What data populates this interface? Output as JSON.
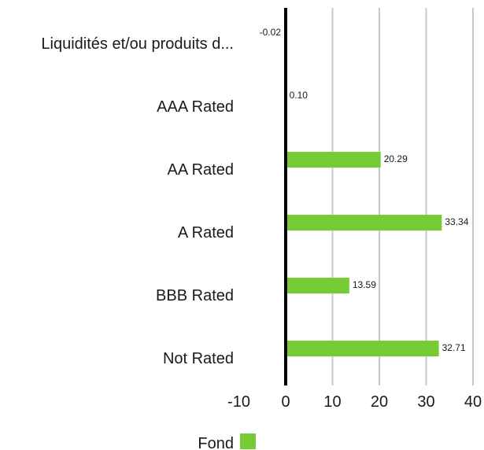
{
  "chart_data": {
    "type": "bar",
    "orientation": "horizontal",
    "categories": [
      "Liquidités et/ou produits d...",
      "AAA Rated",
      "AA Rated",
      "A Rated",
      "BBB Rated",
      "Not Rated"
    ],
    "series": [
      {
        "name": "Fond",
        "values": [
          -0.02,
          0.1,
          20.29,
          33.34,
          13.59,
          32.71
        ],
        "value_labels": [
          "-0.02",
          "0.10",
          "20.29",
          "33.34",
          "13.59",
          "32.71"
        ],
        "color": "#77cc33"
      }
    ],
    "xlim": [
      -10,
      40
    ],
    "xticks": [
      -10,
      0,
      10,
      20,
      30,
      40
    ],
    "xtick_labels": [
      "-10",
      "0",
      "10",
      "20",
      "30",
      "40"
    ],
    "grid": "vertical",
    "zero_line_color": "#000000",
    "grid_color": "#c8c8c8",
    "legend_position": "bottom-left"
  }
}
